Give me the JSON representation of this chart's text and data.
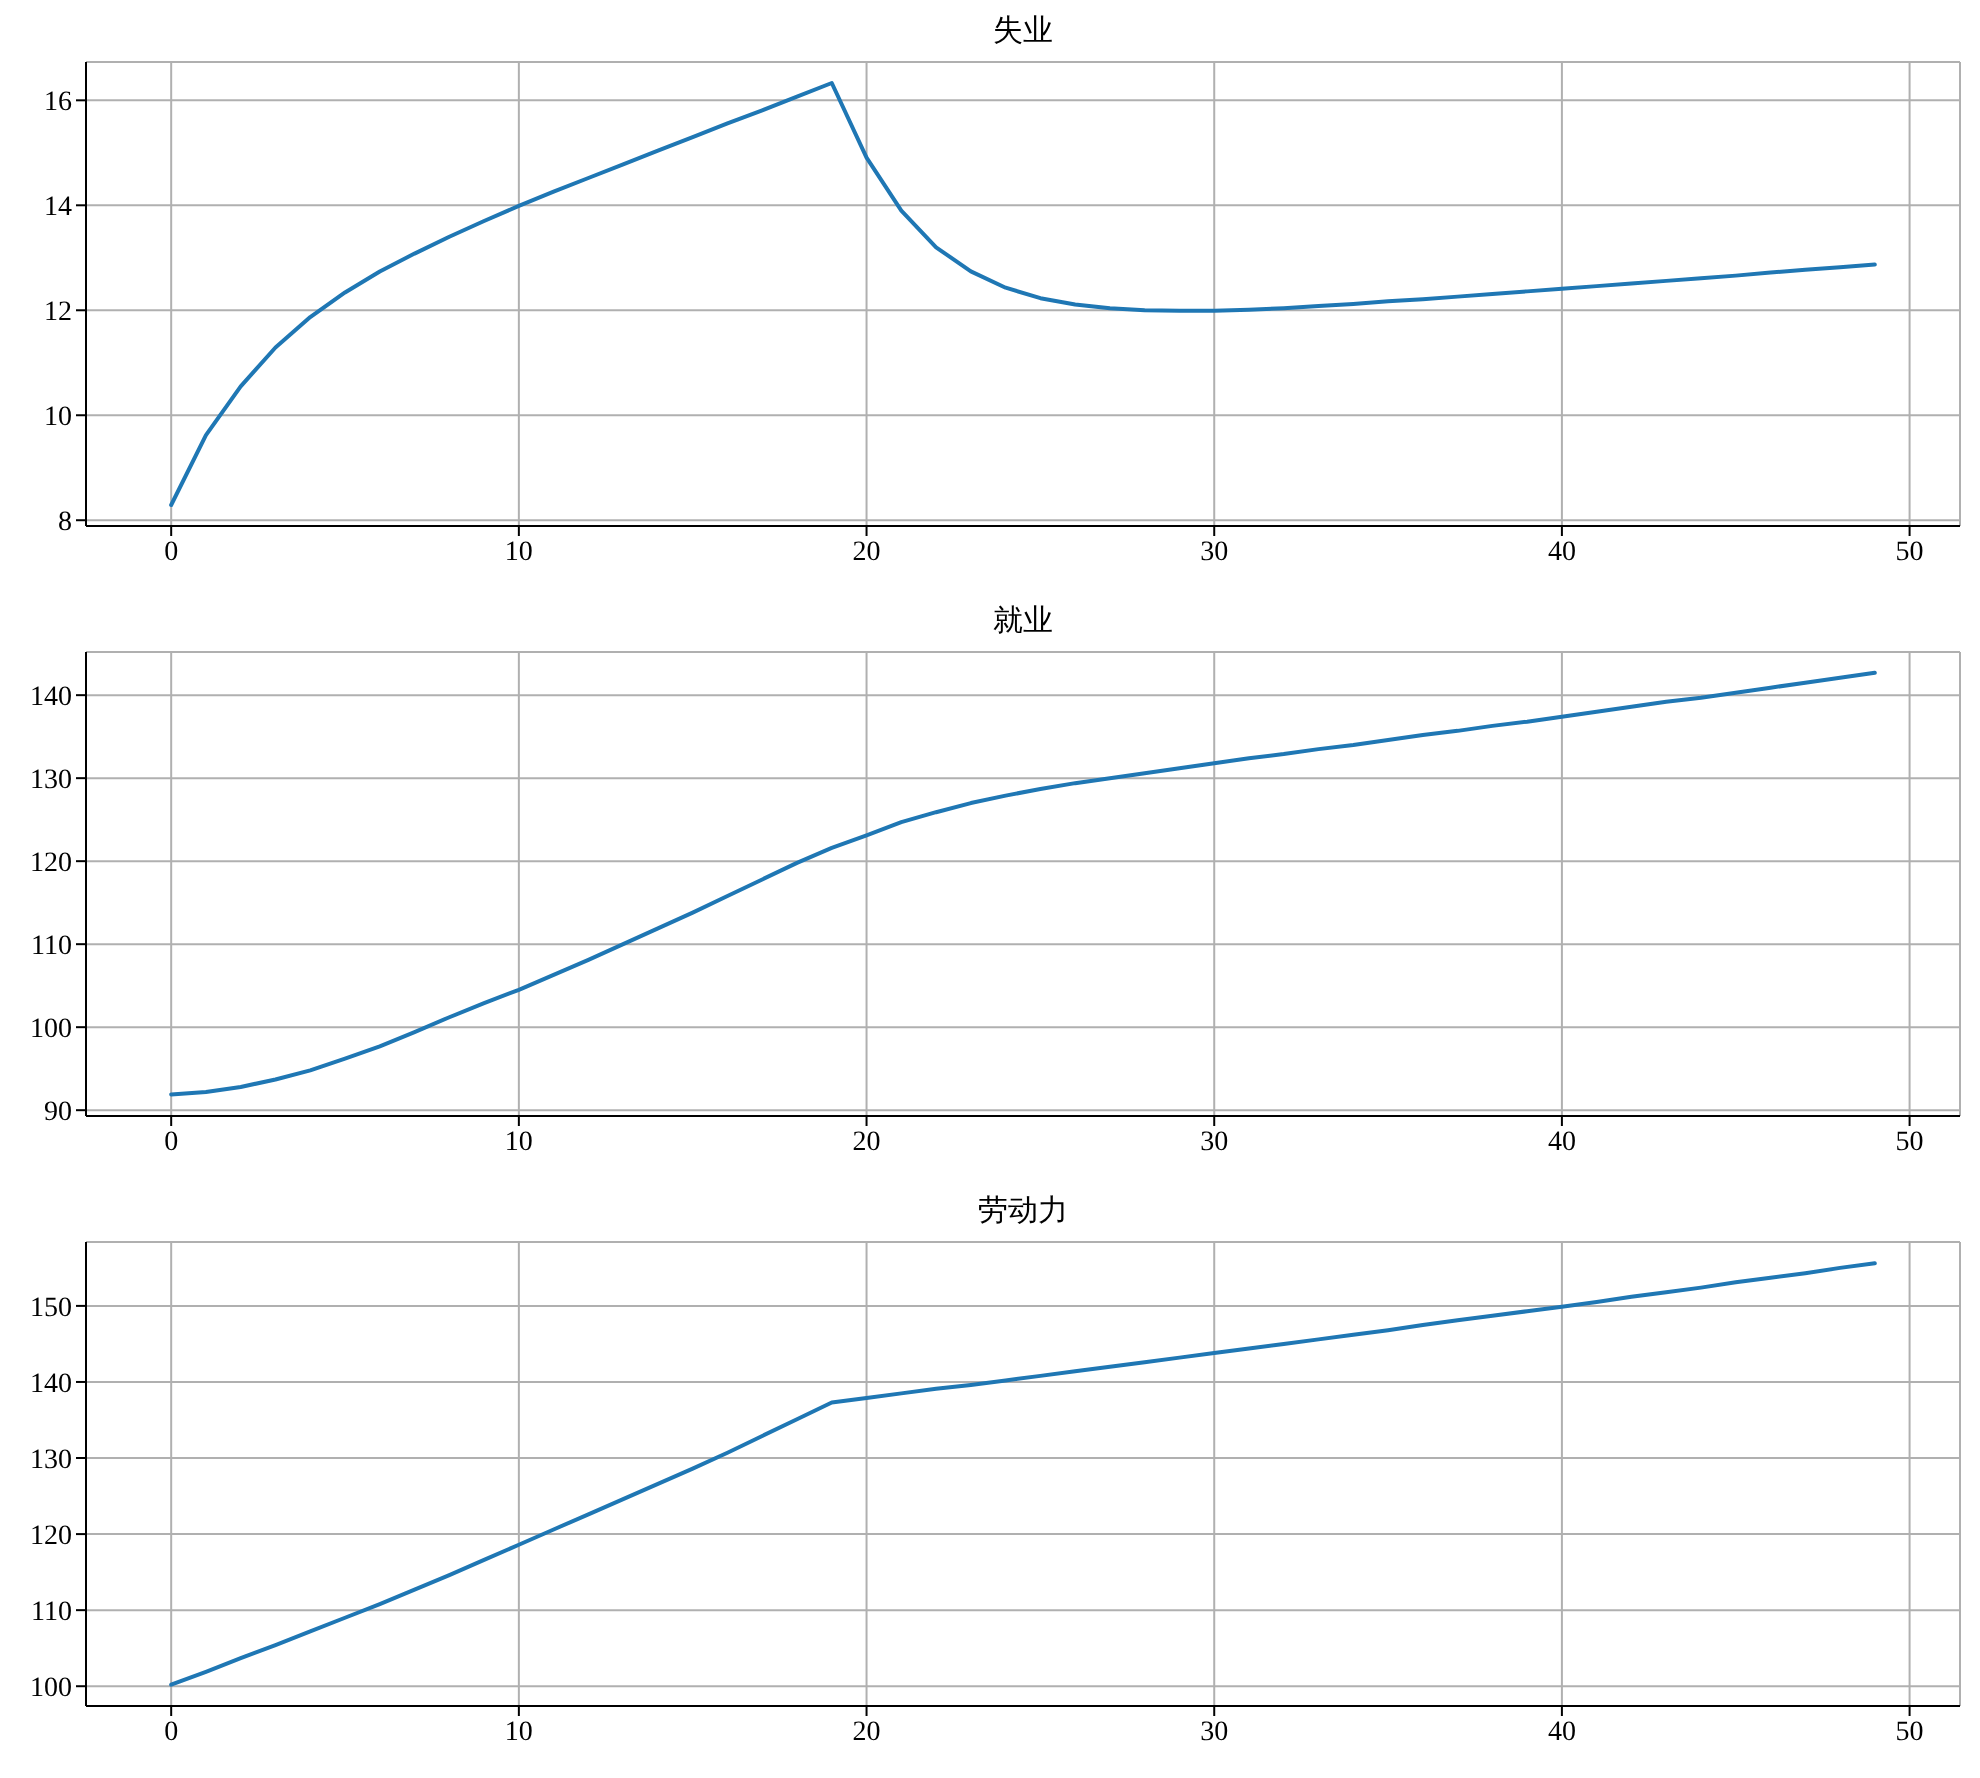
{
  "chart_data": [
    {
      "type": "line",
      "title": "失业",
      "color": "#1f77b4",
      "grid": true,
      "x": [
        0,
        1,
        2,
        3,
        4,
        5,
        6,
        7,
        8,
        9,
        10,
        11,
        12,
        13,
        14,
        15,
        16,
        17,
        18,
        19,
        20,
        21,
        22,
        23,
        24,
        25,
        26,
        27,
        28,
        29,
        30,
        31,
        32,
        33,
        34,
        35,
        36,
        37,
        38,
        39,
        40,
        41,
        42,
        43,
        44,
        45,
        46,
        47,
        48,
        49
      ],
      "values": [
        8.29,
        9.62,
        10.55,
        11.29,
        11.87,
        12.34,
        12.74,
        13.08,
        13.4,
        13.7,
        13.99,
        14.26,
        14.52,
        14.78,
        15.04,
        15.3,
        15.56,
        15.81,
        16.07,
        16.33,
        14.91,
        13.9,
        13.2,
        12.74,
        12.43,
        12.23,
        12.11,
        12.04,
        12.0,
        11.99,
        11.99,
        12.01,
        12.04,
        12.08,
        12.12,
        12.17,
        12.21,
        12.26,
        12.31,
        12.36,
        12.41,
        12.46,
        12.51,
        12.56,
        12.61,
        12.66,
        12.72,
        12.77,
        12.82,
        12.87
      ],
      "xlim": [
        -2.45,
        51.45
      ],
      "xticks": [
        0,
        10,
        20,
        30,
        40,
        50
      ],
      "ylim": [
        7.89,
        16.73
      ],
      "yticks": [
        8,
        10,
        12,
        14,
        16
      ]
    },
    {
      "type": "line",
      "title": "就业",
      "color": "#1f77b4",
      "grid": true,
      "x": [
        0,
        1,
        2,
        3,
        4,
        5,
        6,
        7,
        8,
        9,
        10,
        11,
        12,
        13,
        14,
        15,
        16,
        17,
        18,
        19,
        20,
        21,
        22,
        23,
        24,
        25,
        26,
        27,
        28,
        29,
        30,
        31,
        32,
        33,
        34,
        35,
        36,
        37,
        38,
        39,
        40,
        41,
        42,
        43,
        44,
        45,
        46,
        47,
        48,
        49
      ],
      "values": [
        91.9,
        92.2,
        92.8,
        93.7,
        94.8,
        96.2,
        97.7,
        99.4,
        101.2,
        102.9,
        104.5,
        106.3,
        108.1,
        110.0,
        111.9,
        113.8,
        115.8,
        117.8,
        119.8,
        121.6,
        123.1,
        124.7,
        125.9,
        127.0,
        127.9,
        128.7,
        129.4,
        130.0,
        130.6,
        131.2,
        131.8,
        132.4,
        132.9,
        133.5,
        134.0,
        134.6,
        135.2,
        135.7,
        136.3,
        136.8,
        137.4,
        138.0,
        138.6,
        139.2,
        139.7,
        140.3,
        140.9,
        141.5,
        142.1,
        142.7
      ],
      "xlim": [
        -2.45,
        51.45
      ],
      "xticks": [
        0,
        10,
        20,
        30,
        40,
        50
      ],
      "ylim": [
        89.3,
        145.2
      ],
      "yticks": [
        90,
        100,
        110,
        120,
        130,
        140
      ]
    },
    {
      "type": "line",
      "title": "劳动力",
      "color": "#1f77b4",
      "grid": true,
      "x": [
        0,
        1,
        2,
        3,
        4,
        5,
        6,
        7,
        8,
        9,
        10,
        11,
        12,
        13,
        14,
        15,
        16,
        17,
        18,
        19,
        20,
        21,
        22,
        23,
        24,
        25,
        26,
        27,
        28,
        29,
        30,
        31,
        32,
        33,
        34,
        35,
        36,
        37,
        38,
        39,
        40,
        41,
        42,
        43,
        44,
        45,
        46,
        47,
        48,
        49
      ],
      "values": [
        100.2,
        101.9,
        103.7,
        105.4,
        107.2,
        109.0,
        110.8,
        112.7,
        114.6,
        116.6,
        118.6,
        120.6,
        122.6,
        124.6,
        126.6,
        128.6,
        130.7,
        132.9,
        135.1,
        137.3,
        137.9,
        138.5,
        139.1,
        139.6,
        140.2,
        140.8,
        141.4,
        142.0,
        142.6,
        143.2,
        143.8,
        144.4,
        145.0,
        145.6,
        146.2,
        146.8,
        147.5,
        148.1,
        148.7,
        149.3,
        149.9,
        150.5,
        151.2,
        151.8,
        152.4,
        153.1,
        153.7,
        154.3,
        155.0,
        155.6
      ],
      "xlim": [
        -2.45,
        51.45
      ],
      "xticks": [
        0,
        10,
        20,
        30,
        40,
        50
      ],
      "ylim": [
        97.4,
        158.4
      ],
      "yticks": [
        100,
        110,
        120,
        130,
        140,
        150
      ]
    }
  ]
}
